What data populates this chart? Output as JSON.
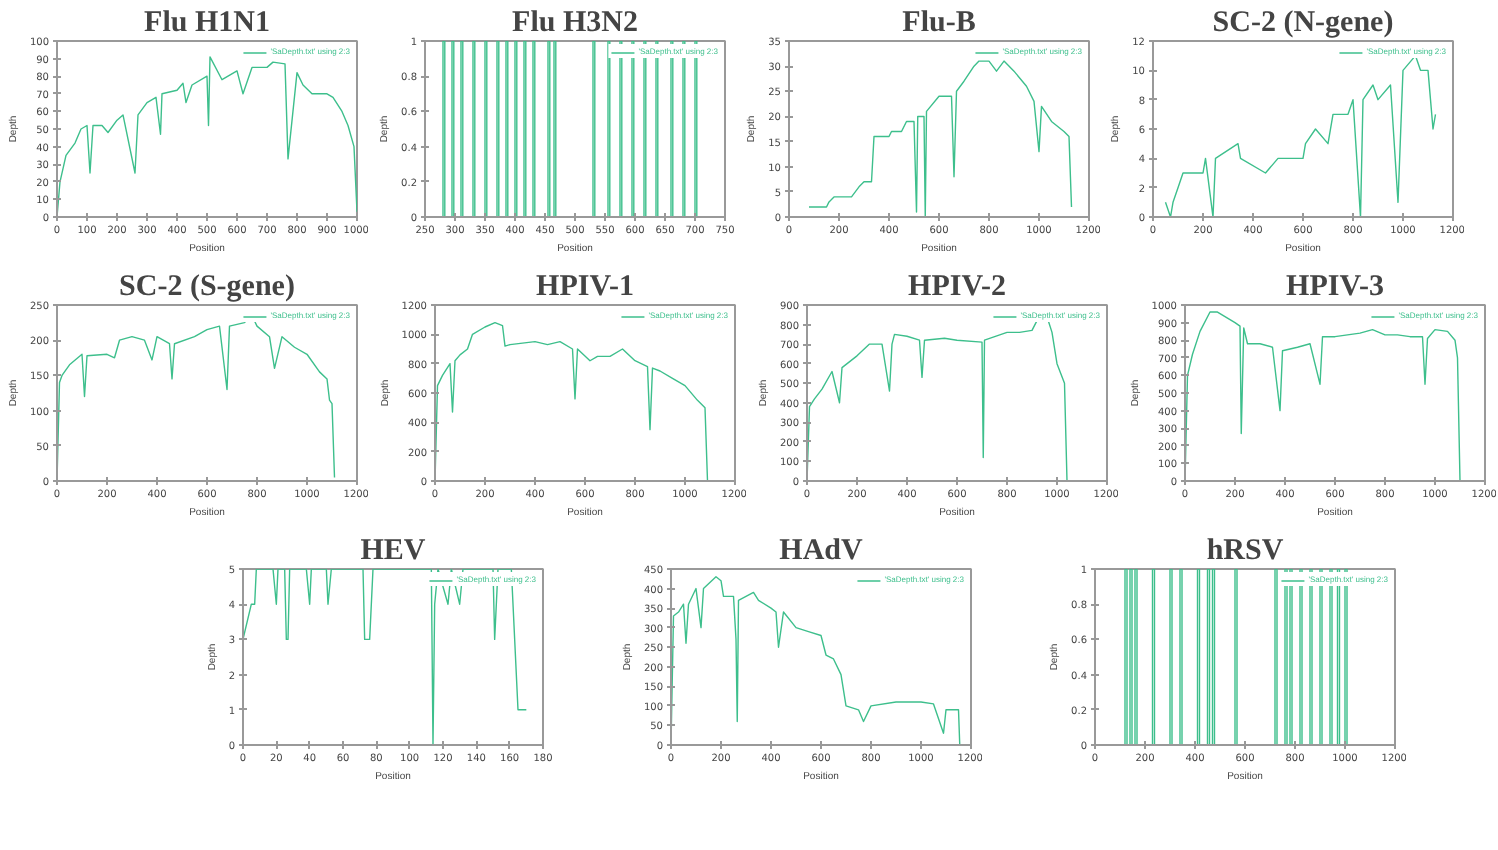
{
  "chart_data": [
    {
      "type": "line",
      "title": "Flu H1N1",
      "xlabel": "Position",
      "ylabel": "Depth",
      "xlim": [
        0,
        1000
      ],
      "ylim": [
        0,
        100
      ],
      "xticks": [
        0,
        100,
        200,
        300,
        400,
        500,
        600,
        700,
        800,
        900,
        1000
      ],
      "yticks": [
        0,
        10,
        20,
        30,
        40,
        50,
        60,
        70,
        80,
        90,
        100
      ],
      "grid": false,
      "legend": "top right",
      "marker": "none",
      "line_style": "solid",
      "series": [
        {
          "name": "'SaDepth.txt' using 2:3",
          "color": "#3dbf8c",
          "x": [
            0,
            10,
            30,
            60,
            80,
            100,
            110,
            120,
            150,
            170,
            200,
            220,
            260,
            270,
            300,
            330,
            345,
            350,
            400,
            420,
            430,
            450,
            500,
            505,
            510,
            550,
            600,
            620,
            650,
            700,
            720,
            760,
            770,
            800,
            820,
            850,
            900,
            920,
            950,
            970,
            990,
            1000
          ],
          "values": [
            0,
            20,
            35,
            42,
            50,
            52,
            25,
            52,
            52,
            48,
            55,
            58,
            25,
            58,
            65,
            68,
            47,
            70,
            72,
            76,
            65,
            75,
            80,
            52,
            91,
            78,
            83,
            70,
            85,
            85,
            88,
            87,
            33,
            82,
            75,
            70,
            70,
            68,
            60,
            52,
            40,
            3
          ]
        }
      ]
    },
    {
      "type": "line",
      "title": "Flu H3N2",
      "xlabel": "Position",
      "ylabel": "Depth",
      "xlim": [
        250,
        750
      ],
      "ylim": [
        0,
        1
      ],
      "xticks": [
        250,
        300,
        350,
        400,
        450,
        500,
        550,
        600,
        650,
        700,
        750
      ],
      "yticks": [
        0,
        0.2,
        0.4,
        0.6,
        0.8,
        1
      ],
      "grid": false,
      "legend": "top right",
      "marker": "none",
      "line_style": "solid",
      "series": [
        {
          "name": "'SaDepth.txt' using 2:3",
          "color": "#3dbf8c",
          "x": [
            280,
            280,
            283,
            283,
            295,
            295,
            298,
            298,
            310,
            310,
            313,
            313,
            330,
            330,
            333,
            333,
            350,
            350,
            353,
            353,
            370,
            370,
            373,
            373,
            385,
            385,
            388,
            388,
            400,
            400,
            403,
            403,
            415,
            415,
            418,
            418,
            430,
            430,
            433,
            433,
            455,
            455,
            458,
            458,
            465,
            465,
            468,
            468,
            530,
            530,
            533,
            533,
            555,
            555,
            558,
            558,
            575,
            575,
            578,
            578,
            595,
            595,
            598,
            598,
            615,
            615,
            618,
            618,
            635,
            635,
            638,
            638,
            660,
            660,
            663,
            663,
            680,
            680,
            683,
            683,
            700,
            700,
            703,
            703
          ],
          "values": [
            0,
            1,
            1,
            0,
            0,
            1,
            1,
            0,
            0,
            1,
            1,
            0,
            0,
            1,
            1,
            0,
            0,
            1,
            1,
            0,
            0,
            1,
            1,
            0,
            0,
            1,
            1,
            0,
            0,
            1,
            1,
            0,
            0,
            1,
            1,
            0,
            0,
            1,
            1,
            0,
            0,
            1,
            1,
            0,
            0,
            1,
            1,
            0,
            0,
            1,
            1,
            0,
            0,
            1,
            1,
            0,
            0,
            1,
            1,
            0,
            0,
            1,
            1,
            0,
            0,
            1,
            1,
            0,
            0,
            1,
            1,
            0,
            0,
            1,
            1,
            0,
            0,
            1,
            1,
            0,
            0,
            1,
            1,
            0
          ]
        }
      ]
    },
    {
      "type": "line",
      "title": "Flu-B",
      "xlabel": "Position",
      "ylabel": "Depth",
      "xlim": [
        0,
        1200
      ],
      "ylim": [
        0,
        35
      ],
      "xticks": [
        0,
        200,
        400,
        600,
        800,
        1000,
        1200
      ],
      "yticks": [
        0,
        5,
        10,
        15,
        20,
        25,
        30,
        35
      ],
      "grid": false,
      "legend": "top right",
      "marker": "none",
      "line_style": "solid",
      "series": [
        {
          "name": "'SaDepth.txt' using 2:3",
          "color": "#3dbf8c",
          "x": [
            80,
            150,
            160,
            180,
            250,
            280,
            300,
            330,
            340,
            400,
            410,
            450,
            470,
            500,
            510,
            515,
            540,
            545,
            550,
            600,
            650,
            660,
            670,
            700,
            740,
            760,
            800,
            830,
            860,
            900,
            950,
            980,
            1000,
            1010,
            1050,
            1100,
            1120,
            1130
          ],
          "values": [
            2,
            2,
            3,
            4,
            4,
            6,
            7,
            7,
            16,
            16,
            17,
            17,
            19,
            19,
            1,
            20,
            20,
            0,
            21,
            24,
            24,
            8,
            25,
            27,
            30,
            31,
            31,
            29,
            31,
            29,
            26,
            23,
            13,
            22,
            19,
            17,
            16,
            2
          ]
        }
      ]
    },
    {
      "type": "line",
      "title": "SC-2 (N-gene)",
      "xlabel": "Position",
      "ylabel": "Depth",
      "xlim": [
        0,
        1200
      ],
      "ylim": [
        0,
        12
      ],
      "xticks": [
        0,
        200,
        400,
        600,
        800,
        1000,
        1200
      ],
      "yticks": [
        0,
        2,
        4,
        6,
        8,
        10,
        12
      ],
      "grid": false,
      "legend": "top right",
      "marker": "none",
      "line_style": "solid",
      "series": [
        {
          "name": "'SaDepth.txt' using 2:3",
          "color": "#3dbf8c",
          "x": [
            50,
            70,
            80,
            100,
            120,
            200,
            210,
            240,
            250,
            340,
            350,
            450,
            500,
            600,
            610,
            650,
            700,
            720,
            780,
            800,
            830,
            840,
            880,
            900,
            950,
            980,
            1000,
            1050,
            1070,
            1100,
            1110,
            1120,
            1130
          ],
          "values": [
            1,
            0,
            1,
            2,
            3,
            3,
            4,
            0,
            4,
            5,
            4,
            3,
            4,
            4,
            5,
            6,
            5,
            7,
            7,
            8,
            0,
            8,
            9,
            8,
            9,
            1,
            10,
            11,
            10,
            10,
            8,
            6,
            7
          ]
        }
      ]
    },
    {
      "type": "line",
      "title": "SC-2 (S-gene)",
      "xlabel": "Position",
      "ylabel": "Depth",
      "xlim": [
        0,
        1200
      ],
      "ylim": [
        0,
        250
      ],
      "xticks": [
        0,
        200,
        400,
        600,
        800,
        1000,
        1200
      ],
      "yticks": [
        0,
        50,
        100,
        150,
        200,
        250
      ],
      "grid": false,
      "legend": "top right",
      "marker": "none",
      "line_style": "solid",
      "series": [
        {
          "name": "'SaDepth.txt' using 2:3",
          "color": "#3dbf8c",
          "x": [
            0,
            10,
            20,
            50,
            100,
            110,
            120,
            200,
            230,
            250,
            300,
            350,
            380,
            400,
            450,
            460,
            470,
            550,
            600,
            650,
            680,
            690,
            750,
            780,
            800,
            850,
            870,
            900,
            950,
            1000,
            1050,
            1080,
            1090,
            1100,
            1110
          ],
          "values": [
            0,
            140,
            150,
            165,
            180,
            120,
            178,
            180,
            175,
            200,
            205,
            200,
            172,
            205,
            195,
            145,
            195,
            205,
            215,
            220,
            130,
            220,
            225,
            235,
            220,
            205,
            160,
            205,
            190,
            180,
            155,
            145,
            115,
            110,
            5
          ]
        }
      ]
    },
    {
      "type": "line",
      "title": "HPIV-1",
      "xlabel": "Position",
      "ylabel": "Depth",
      "xlim": [
        0,
        1200
      ],
      "ylim": [
        0,
        1200
      ],
      "xticks": [
        0,
        200,
        400,
        600,
        800,
        1000,
        1200
      ],
      "yticks": [
        0,
        200,
        400,
        600,
        800,
        1000,
        1200
      ],
      "grid": false,
      "legend": "top right",
      "marker": "none",
      "line_style": "solid",
      "series": [
        {
          "name": "'SaDepth.txt' using 2:3",
          "color": "#3dbf8c",
          "x": [
            0,
            10,
            30,
            60,
            70,
            80,
            100,
            130,
            150,
            200,
            240,
            270,
            280,
            300,
            400,
            450,
            500,
            550,
            560,
            570,
            620,
            650,
            700,
            750,
            800,
            850,
            860,
            870,
            900,
            950,
            1000,
            1050,
            1080,
            1090
          ],
          "values": [
            0,
            650,
            720,
            800,
            470,
            820,
            860,
            900,
            1000,
            1050,
            1080,
            1060,
            920,
            930,
            950,
            930,
            950,
            900,
            560,
            900,
            820,
            850,
            850,
            900,
            820,
            780,
            350,
            770,
            750,
            700,
            650,
            550,
            500,
            0
          ]
        }
      ]
    },
    {
      "type": "line",
      "title": "HPIV-2",
      "xlabel": "Position",
      "ylabel": "Depth",
      "xlim": [
        0,
        1200
      ],
      "ylim": [
        0,
        900
      ],
      "xticks": [
        0,
        200,
        400,
        600,
        800,
        1000,
        1200
      ],
      "yticks": [
        0,
        100,
        200,
        300,
        400,
        500,
        600,
        700,
        800,
        900
      ],
      "grid": false,
      "legend": "top right",
      "marker": "none",
      "line_style": "solid",
      "series": [
        {
          "name": "'SaDepth.txt' using 2:3",
          "color": "#3dbf8c",
          "x": [
            0,
            10,
            30,
            60,
            100,
            130,
            140,
            200,
            250,
            300,
            330,
            340,
            350,
            400,
            450,
            460,
            470,
            550,
            600,
            700,
            705,
            710,
            800,
            850,
            900,
            940,
            960,
            980,
            1000,
            1030,
            1040
          ],
          "values": [
            0,
            380,
            420,
            470,
            560,
            400,
            580,
            640,
            700,
            700,
            460,
            700,
            750,
            740,
            720,
            530,
            720,
            730,
            720,
            710,
            120,
            720,
            760,
            760,
            770,
            870,
            840,
            760,
            600,
            500,
            0
          ]
        }
      ]
    },
    {
      "type": "line",
      "title": "HPIV-3",
      "xlabel": "Position",
      "ylabel": "Depth",
      "xlim": [
        0,
        1200
      ],
      "ylim": [
        0,
        1000
      ],
      "xticks": [
        0,
        200,
        400,
        600,
        800,
        1000,
        1200
      ],
      "yticks": [
        0,
        100,
        200,
        300,
        400,
        500,
        600,
        700,
        800,
        900,
        1000
      ],
      "grid": false,
      "legend": "top right",
      "marker": "none",
      "line_style": "solid",
      "series": [
        {
          "name": "'SaDepth.txt' using 2:3",
          "color": "#3dbf8c",
          "x": [
            0,
            10,
            30,
            60,
            100,
            130,
            200,
            220,
            225,
            235,
            250,
            300,
            350,
            380,
            390,
            450,
            500,
            540,
            550,
            600,
            700,
            750,
            800,
            850,
            900,
            950,
            960,
            970,
            1000,
            1050,
            1080,
            1090,
            1100
          ],
          "values": [
            0,
            600,
            720,
            850,
            960,
            960,
            900,
            880,
            270,
            870,
            780,
            780,
            760,
            400,
            740,
            760,
            780,
            550,
            820,
            820,
            840,
            860,
            830,
            830,
            820,
            820,
            550,
            810,
            860,
            850,
            800,
            700,
            0
          ]
        }
      ]
    },
    {
      "type": "line",
      "title": "HEV",
      "xlabel": "Position",
      "ylabel": "Depth",
      "xlim": [
        0,
        180
      ],
      "ylim": [
        0,
        5
      ],
      "xticks": [
        0,
        20,
        40,
        60,
        80,
        100,
        120,
        140,
        160,
        180
      ],
      "yticks": [
        0,
        1,
        2,
        3,
        4,
        5
      ],
      "grid": false,
      "legend": "top right",
      "marker": "none",
      "line_style": "solid",
      "series": [
        {
          "name": "'SaDepth.txt' using 2:3",
          "color": "#3dbf8c",
          "x": [
            0,
            5,
            7,
            8,
            18,
            20,
            21,
            25,
            26,
            27,
            28,
            38,
            40,
            41,
            50,
            51,
            53,
            72,
            73,
            76,
            78,
            113,
            114,
            115,
            117,
            123,
            125,
            130,
            132,
            150,
            151,
            153,
            161,
            165,
            170
          ],
          "values": [
            3,
            4,
            4,
            5,
            5,
            4,
            5,
            5,
            3,
            3,
            5,
            5,
            4,
            5,
            5,
            4,
            5,
            5,
            3,
            3,
            5,
            5,
            0,
            4,
            5,
            4,
            5,
            4,
            5,
            5,
            3,
            5,
            5,
            1,
            1
          ]
        }
      ]
    },
    {
      "type": "line",
      "title": "HAdV",
      "xlabel": "Position",
      "ylabel": "Depth",
      "xlim": [
        0,
        1200
      ],
      "ylim": [
        0,
        450
      ],
      "xticks": [
        0,
        200,
        400,
        600,
        800,
        1000,
        1200
      ],
      "yticks": [
        0,
        50,
        100,
        150,
        200,
        250,
        300,
        350,
        400,
        450
      ],
      "grid": false,
      "legend": "top right",
      "marker": "none",
      "line_style": "solid",
      "series": [
        {
          "name": "'SaDepth.txt' using 2:3",
          "color": "#3dbf8c",
          "x": [
            0,
            10,
            30,
            50,
            60,
            70,
            100,
            120,
            130,
            180,
            200,
            210,
            250,
            260,
            265,
            270,
            300,
            330,
            350,
            400,
            420,
            430,
            450,
            500,
            550,
            600,
            620,
            650,
            680,
            700,
            750,
            770,
            800,
            900,
            1000,
            1050,
            1090,
            1100,
            1150,
            1155
          ],
          "values": [
            0,
            330,
            340,
            360,
            260,
            360,
            400,
            300,
            400,
            430,
            420,
            380,
            380,
            270,
            60,
            370,
            380,
            390,
            370,
            350,
            340,
            250,
            340,
            300,
            290,
            280,
            230,
            220,
            180,
            100,
            90,
            60,
            100,
            110,
            110,
            105,
            30,
            90,
            90,
            0
          ]
        }
      ]
    },
    {
      "type": "line",
      "title": "hRSV",
      "xlabel": "Position",
      "ylabel": "Depth",
      "xlim": [
        0,
        1200
      ],
      "ylim": [
        0,
        1
      ],
      "xticks": [
        0,
        200,
        400,
        600,
        800,
        1000,
        1200
      ],
      "yticks": [
        0,
        0.2,
        0.4,
        0.6,
        0.8,
        1
      ],
      "grid": false,
      "legend": "top right",
      "marker": "none",
      "line_style": "solid",
      "series": [
        {
          "name": "'SaDepth.txt' using 2:3",
          "color": "#3dbf8c",
          "x": [
            120,
            120,
            128,
            128,
            140,
            140,
            148,
            148,
            160,
            160,
            168,
            168,
            230,
            230,
            238,
            238,
            300,
            300,
            308,
            308,
            340,
            340,
            348,
            348,
            410,
            410,
            418,
            418,
            450,
            450,
            458,
            458,
            470,
            470,
            478,
            478,
            560,
            560,
            568,
            568,
            720,
            720,
            728,
            728,
            760,
            760,
            768,
            768,
            780,
            780,
            788,
            788,
            820,
            820,
            828,
            828,
            860,
            860,
            868,
            868,
            900,
            900,
            908,
            908,
            940,
            940,
            948,
            948,
            970,
            970,
            978,
            978,
            1000,
            1000,
            1008,
            1008
          ],
          "values": [
            0,
            1,
            1,
            0,
            0,
            1,
            1,
            0,
            0,
            1,
            1,
            0,
            0,
            1,
            1,
            0,
            0,
            1,
            1,
            0,
            0,
            1,
            1,
            0,
            0,
            1,
            1,
            0,
            0,
            1,
            1,
            0,
            0,
            1,
            1,
            0,
            0,
            1,
            1,
            0,
            0,
            1,
            1,
            0,
            0,
            1,
            1,
            0,
            0,
            1,
            1,
            0,
            0,
            1,
            1,
            0,
            0,
            1,
            1,
            0,
            0,
            1,
            1,
            0,
            0,
            1,
            1,
            0,
            0,
            1,
            1,
            0,
            0,
            1,
            1,
            0
          ]
        }
      ]
    }
  ]
}
